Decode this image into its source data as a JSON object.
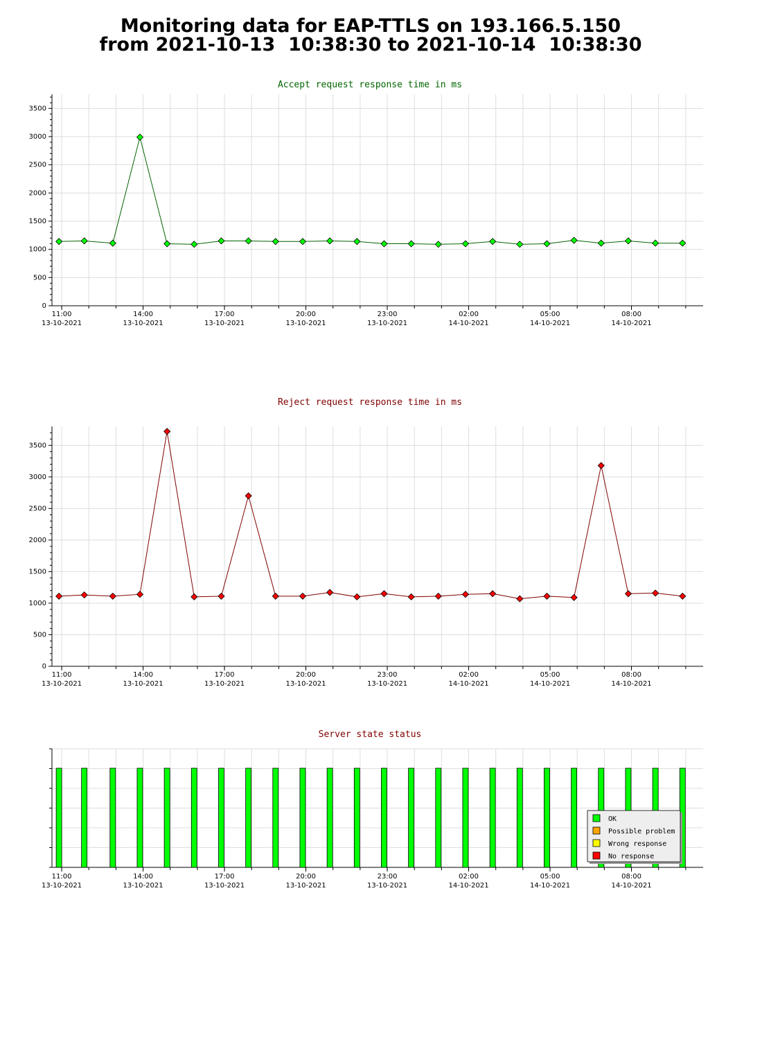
{
  "page": {
    "title_line1": "Monitoring data for EAP-TTLS on 193.166.5.150",
    "title_line2": "from 2021-10-13  10:38:30 to 2021-10-14  10:38:30"
  },
  "chart_data": [
    {
      "type": "line",
      "title": "Accept request response time in ms",
      "title_color": "#006400",
      "line_color": "#006400",
      "marker_color": "#00ff00",
      "ylim": [
        0,
        3750
      ],
      "yticks": [
        0,
        500,
        1000,
        1500,
        2000,
        2500,
        3000,
        3500
      ],
      "grid": true,
      "x_range": [
        "2021-10-13 10:38:30",
        "2021-10-14 10:38:30"
      ],
      "x_ticks": [
        {
          "time": "11:00",
          "date": "13-10-2021"
        },
        {
          "time": "14:00",
          "date": "13-10-2021"
        },
        {
          "time": "17:00",
          "date": "13-10-2021"
        },
        {
          "time": "20:00",
          "date": "13-10-2021"
        },
        {
          "time": "23:00",
          "date": "13-10-2021"
        },
        {
          "time": "02:00",
          "date": "14-10-2021"
        },
        {
          "time": "05:00",
          "date": "14-10-2021"
        },
        {
          "time": "08:00",
          "date": "14-10-2021"
        }
      ],
      "x": [
        "2021-10-13 10:54",
        "2021-10-13 11:50",
        "2021-10-13 12:53",
        "2021-10-13 13:53",
        "2021-10-13 14:53",
        "2021-10-13 15:53",
        "2021-10-13 16:53",
        "2021-10-13 17:53",
        "2021-10-13 18:53",
        "2021-10-13 19:53",
        "2021-10-13 20:53",
        "2021-10-13 21:53",
        "2021-10-13 22:53",
        "2021-10-13 23:53",
        "2021-10-14 00:53",
        "2021-10-14 01:53",
        "2021-10-14 02:53",
        "2021-10-14 03:53",
        "2021-10-14 04:53",
        "2021-10-14 05:53",
        "2021-10-14 06:53",
        "2021-10-14 07:53",
        "2021-10-14 08:53",
        "2021-10-14 09:53"
      ],
      "values": [
        1140,
        1150,
        1110,
        2990,
        1100,
        1090,
        1150,
        1150,
        1140,
        1140,
        1150,
        1140,
        1100,
        1100,
        1090,
        1100,
        1140,
        1090,
        1100,
        1160,
        1110,
        1150,
        1110,
        1110
      ]
    },
    {
      "type": "line",
      "title": "Reject request response time in ms",
      "title_color": "#800000",
      "line_color": "#800000",
      "marker_color": "#ff0000",
      "ylim": [
        0,
        3800
      ],
      "yticks": [
        0,
        500,
        1000,
        1500,
        2000,
        2500,
        3000,
        3500
      ],
      "grid": true,
      "x_range": [
        "2021-10-13 10:38:30",
        "2021-10-14 10:38:30"
      ],
      "x_ticks": [
        {
          "time": "11:00",
          "date": "13-10-2021"
        },
        {
          "time": "14:00",
          "date": "13-10-2021"
        },
        {
          "time": "17:00",
          "date": "13-10-2021"
        },
        {
          "time": "20:00",
          "date": "13-10-2021"
        },
        {
          "time": "23:00",
          "date": "13-10-2021"
        },
        {
          "time": "02:00",
          "date": "14-10-2021"
        },
        {
          "time": "05:00",
          "date": "14-10-2021"
        },
        {
          "time": "08:00",
          "date": "14-10-2021"
        }
      ],
      "x": [
        "2021-10-13 10:54",
        "2021-10-13 11:50",
        "2021-10-13 12:53",
        "2021-10-13 13:53",
        "2021-10-13 14:53",
        "2021-10-13 15:53",
        "2021-10-13 16:53",
        "2021-10-13 17:53",
        "2021-10-13 18:53",
        "2021-10-13 19:53",
        "2021-10-13 20:53",
        "2021-10-13 21:53",
        "2021-10-13 22:53",
        "2021-10-13 23:53",
        "2021-10-14 00:53",
        "2021-10-14 01:53",
        "2021-10-14 02:53",
        "2021-10-14 03:53",
        "2021-10-14 04:53",
        "2021-10-14 05:53",
        "2021-10-14 06:53",
        "2021-10-14 07:53",
        "2021-10-14 08:53",
        "2021-10-14 09:53"
      ],
      "values": [
        1110,
        1130,
        1110,
        1140,
        3720,
        1100,
        1110,
        2700,
        1110,
        1110,
        1170,
        1100,
        1150,
        1100,
        1110,
        1140,
        1150,
        1070,
        1110,
        1090,
        3180,
        1150,
        1160,
        1110
      ]
    },
    {
      "type": "bar",
      "title": "Server state status",
      "title_color": "#800000",
      "x_range": [
        "2021-10-13 10:38:30",
        "2021-10-14 10:38:30"
      ],
      "x_ticks": [
        {
          "time": "11:00",
          "date": "13-10-2021"
        },
        {
          "time": "14:00",
          "date": "13-10-2021"
        },
        {
          "time": "17:00",
          "date": "13-10-2021"
        },
        {
          "time": "20:00",
          "date": "13-10-2021"
        },
        {
          "time": "23:00",
          "date": "13-10-2021"
        },
        {
          "time": "02:00",
          "date": "14-10-2021"
        },
        {
          "time": "05:00",
          "date": "14-10-2021"
        },
        {
          "time": "08:00",
          "date": "14-10-2021"
        }
      ],
      "x": [
        "2021-10-13 10:54",
        "2021-10-13 11:50",
        "2021-10-13 12:53",
        "2021-10-13 13:53",
        "2021-10-13 14:53",
        "2021-10-13 15:53",
        "2021-10-13 16:53",
        "2021-10-13 17:53",
        "2021-10-13 18:53",
        "2021-10-13 19:53",
        "2021-10-13 20:53",
        "2021-10-13 21:53",
        "2021-10-13 22:53",
        "2021-10-13 23:53",
        "2021-10-14 00:53",
        "2021-10-14 01:53",
        "2021-10-14 02:53",
        "2021-10-14 03:53",
        "2021-10-14 04:53",
        "2021-10-14 05:53",
        "2021-10-14 06:53",
        "2021-10-14 07:53",
        "2021-10-14 08:53",
        "2021-10-14 09:53"
      ],
      "states": [
        "OK",
        "OK",
        "OK",
        "OK",
        "OK",
        "OK",
        "OK",
        "OK",
        "OK",
        "OK",
        "OK",
        "OK",
        "OK",
        "OK",
        "OK",
        "OK",
        "OK",
        "OK",
        "OK",
        "OK",
        "OK",
        "OK",
        "OK",
        "OK"
      ],
      "legend_placement": "bottom-right",
      "legend": [
        {
          "label": "OK",
          "color": "#00ff00"
        },
        {
          "label": "Possible problem",
          "color": "#ffa500"
        },
        {
          "label": "Wrong response",
          "color": "#ffff00"
        },
        {
          "label": "No response",
          "color": "#ff0000"
        }
      ]
    }
  ]
}
